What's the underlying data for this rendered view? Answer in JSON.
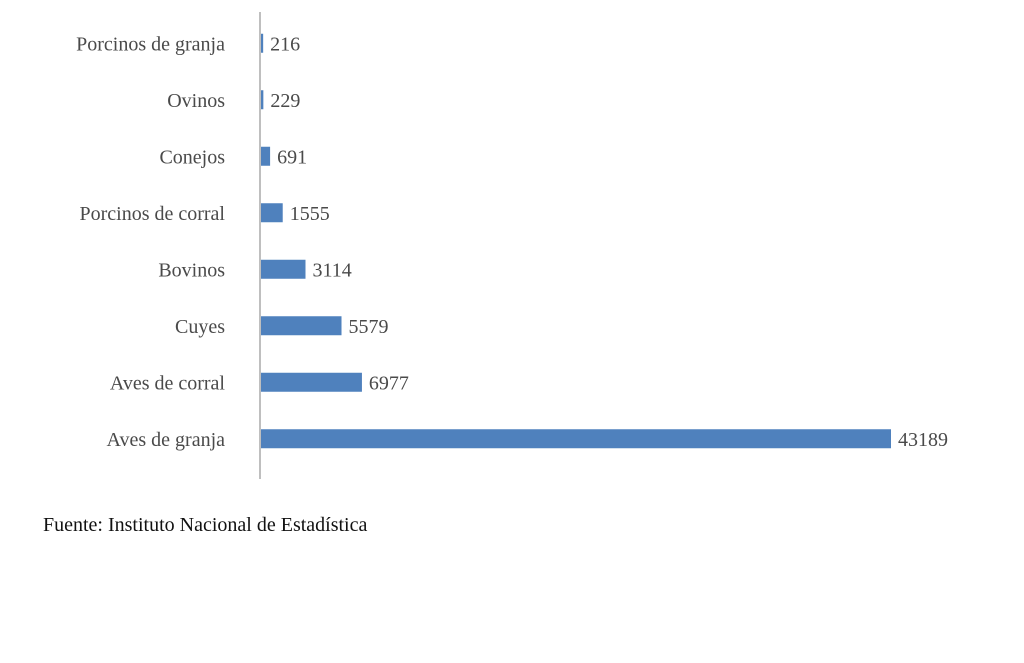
{
  "chart_data": {
    "type": "bar",
    "orientation": "horizontal",
    "categories": [
      "Porcinos  de granja",
      "Ovinos",
      "Conejos",
      "Porcinos  de  corral",
      "Bovinos",
      "Cuyes",
      "Aves de  corral",
      "Aves de granja"
    ],
    "values": [
      216,
      229,
      691,
      1555,
      3114,
      5579,
      6977,
      43189
    ],
    "data_labels": [
      "216",
      "229",
      "691",
      "1555",
      "3114",
      "5579",
      "6977",
      "43189"
    ],
    "bar_color": "#4f81bd",
    "axis_color": "#bfbfbf",
    "grid": false,
    "legend": "none"
  },
  "source": {
    "text": "Fuente: Instituto Nacional de Estadística"
  }
}
